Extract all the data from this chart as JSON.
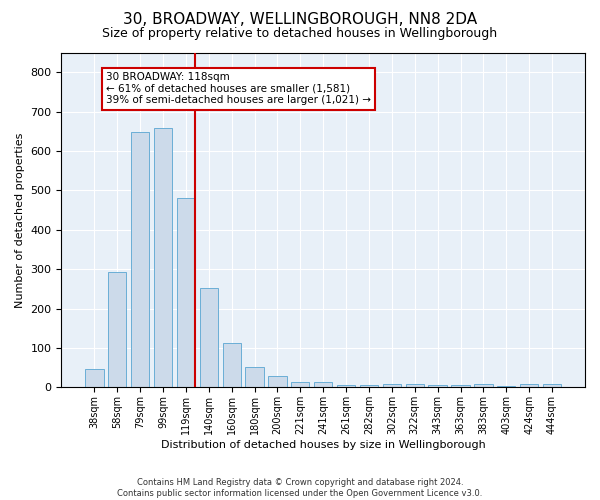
{
  "title": "30, BROADWAY, WELLINGBOROUGH, NN8 2DA",
  "subtitle": "Size of property relative to detached houses in Wellingborough",
  "xlabel": "Distribution of detached houses by size in Wellingborough",
  "ylabel": "Number of detached properties",
  "bar_labels": [
    "38sqm",
    "58sqm",
    "79sqm",
    "99sqm",
    "119sqm",
    "140sqm",
    "160sqm",
    "180sqm",
    "200sqm",
    "221sqm",
    "241sqm",
    "261sqm",
    "282sqm",
    "302sqm",
    "322sqm",
    "343sqm",
    "363sqm",
    "383sqm",
    "403sqm",
    "424sqm",
    "444sqm"
  ],
  "bar_values": [
    47,
    293,
    648,
    658,
    480,
    252,
    113,
    52,
    29,
    15,
    14,
    7,
    5,
    8,
    8,
    5,
    5,
    8,
    3,
    8,
    8
  ],
  "bar_color": "#ccdaea",
  "bar_edge_color": "#6aaed6",
  "vline_color": "#cc0000",
  "annotation_text": "30 BROADWAY: 118sqm\n← 61% of detached houses are smaller (1,581)\n39% of semi-detached houses are larger (1,021) →",
  "annotation_box_color": "#ffffff",
  "annotation_box_edge": "#cc0000",
  "ylim": [
    0,
    850
  ],
  "yticks": [
    0,
    100,
    200,
    300,
    400,
    500,
    600,
    700,
    800
  ],
  "footer_line1": "Contains HM Land Registry data © Crown copyright and database right 2024.",
  "footer_line2": "Contains public sector information licensed under the Open Government Licence v3.0.",
  "bg_color": "#e8f0f8",
  "fig_bg_color": "#ffffff",
  "title_fontsize": 11,
  "subtitle_fontsize": 9,
  "xlabel_fontsize": 8,
  "ylabel_fontsize": 8
}
